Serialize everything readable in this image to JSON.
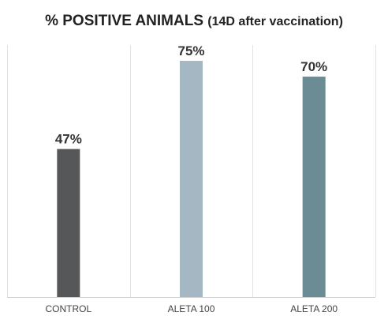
{
  "title": {
    "main": "% POSITIVE ANIMALS",
    "sub": "(14D after vaccination)"
  },
  "chart_data": {
    "type": "bar",
    "title": "% POSITIVE ANIMALS (14D after vaccination)",
    "categories": [
      "CONTROL",
      "ALETA 100",
      "ALETA 200"
    ],
    "values": [
      47,
      75,
      70
    ],
    "value_labels": [
      "47%",
      "75%",
      "70%"
    ],
    "colors": [
      "#555759",
      "#a5b7c2",
      "#6b8c95"
    ],
    "ylim": [
      0,
      100
    ],
    "xlabel": "",
    "ylabel": "",
    "grid": "vertical separators only",
    "legend": "none"
  }
}
